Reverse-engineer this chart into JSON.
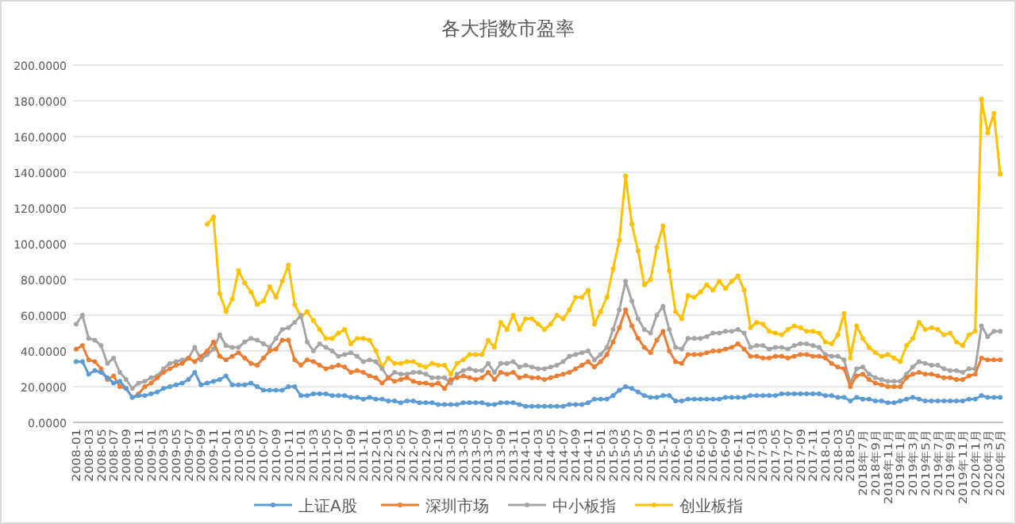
{
  "chart_data": {
    "type": "line",
    "title": "各大指数市盈率",
    "categories": [
      "2008-01",
      null,
      "2008-03",
      null,
      "2008-05",
      null,
      "2008-07",
      null,
      "2008-09",
      null,
      "2008-11",
      null,
      "2009-01",
      null,
      "2009-03",
      null,
      "2009-05",
      null,
      "2009-07",
      null,
      "2009-09",
      null,
      "2009-11",
      null,
      "2010-01",
      null,
      "2010-03",
      null,
      "2010-05",
      null,
      "2010-07",
      null,
      "2010-09",
      null,
      "2010-11",
      null,
      "2011-01",
      null,
      "2011-03",
      null,
      "2011-05",
      null,
      "2011-07",
      null,
      "2011-09",
      null,
      "2011-11",
      null,
      "2012-01",
      null,
      "2012-03",
      null,
      "2012-05",
      null,
      "2012-07",
      null,
      "2012-09",
      null,
      "2012-11",
      null,
      "2013-01",
      null,
      "2013-03",
      null,
      "2013-05",
      null,
      "2013-07",
      null,
      "2013-09",
      null,
      "2013-11",
      null,
      "2014-01",
      null,
      "2014-03",
      null,
      "2014-05",
      null,
      "2014-07",
      null,
      "2014-09",
      null,
      "2014-11",
      null,
      "2015-01",
      null,
      "2015-03",
      null,
      "2015-05",
      null,
      "2015-07",
      null,
      "2015-09",
      null,
      "2015-11",
      null,
      "2016-01",
      null,
      "2016-03",
      null,
      "2016-05",
      null,
      "2016-07",
      null,
      "2016-09",
      null,
      "2016-11",
      null,
      "2017-01",
      null,
      "2017-03",
      null,
      "2017-05",
      null,
      "2017-07",
      null,
      "2017-09",
      null,
      "2017-11",
      null,
      "2018-01",
      null,
      "2018-03",
      null,
      "2018-05",
      null,
      "2018年7月",
      null,
      "2018年9月",
      null,
      "2018年11月",
      null,
      "2019年1月",
      null,
      "2019年3月",
      null,
      "2019年5月",
      null,
      "2019年7月",
      null,
      "2019年9月",
      null,
      "2019年11月",
      null,
      "2020年1月",
      null,
      "2020年3月",
      null,
      "2020年5月"
    ],
    "series": [
      {
        "name": "上证A股",
        "color": "#5b9bd5",
        "values": [
          34,
          34,
          27,
          29,
          28,
          25,
          22,
          23,
          19,
          14,
          15,
          15,
          16,
          17,
          19,
          20,
          21,
          22,
          24,
          28,
          21,
          22,
          23,
          24,
          26,
          21,
          21,
          21,
          22,
          20,
          18,
          18,
          18,
          18,
          20,
          20,
          15,
          15,
          16,
          16,
          16,
          15,
          15,
          15,
          14,
          14,
          13,
          14,
          13,
          13,
          12,
          12,
          11,
          12,
          12,
          11,
          11,
          11,
          10,
          10,
          10,
          10,
          11,
          11,
          11,
          11,
          10,
          10,
          11,
          11,
          11,
          10,
          9,
          9,
          9,
          9,
          9,
          9,
          9,
          10,
          10,
          10,
          11,
          13,
          13,
          13,
          15,
          18,
          20,
          19,
          17,
          15,
          14,
          14,
          15,
          15,
          12,
          12,
          13,
          13,
          13,
          13,
          13,
          13,
          14,
          14,
          14,
          14,
          15,
          15,
          15,
          15,
          15,
          16,
          16,
          16,
          16,
          16,
          16,
          16,
          15,
          15,
          14,
          14,
          12,
          14,
          13,
          13,
          12,
          12,
          11,
          11,
          12,
          13,
          14,
          13,
          12,
          12,
          12,
          12,
          12,
          12,
          12,
          13,
          13,
          15,
          14,
          14,
          14
        ]
      },
      {
        "name": "深圳市场",
        "color": "#ed7d31",
        "values": [
          41,
          43,
          35,
          34,
          30,
          24,
          26,
          20,
          19,
          14,
          16,
          20,
          22,
          25,
          28,
          30,
          32,
          33,
          36,
          34,
          37,
          40,
          45,
          37,
          35,
          37,
          39,
          36,
          33,
          32,
          36,
          40,
          41,
          46,
          46,
          35,
          32,
          35,
          34,
          32,
          30,
          31,
          32,
          31,
          28,
          29,
          28,
          26,
          25,
          22,
          25,
          23,
          24,
          25,
          23,
          22,
          22,
          21,
          22,
          19,
          24,
          25,
          26,
          25,
          24,
          25,
          28,
          24,
          28,
          27,
          28,
          25,
          26,
          25,
          25,
          24,
          25,
          26,
          27,
          28,
          30,
          32,
          34,
          31,
          34,
          38,
          45,
          53,
          63,
          54,
          47,
          42,
          39,
          46,
          51,
          40,
          34,
          33,
          38,
          38,
          38,
          39,
          40,
          40,
          41,
          42,
          44,
          41,
          37,
          37,
          36,
          36,
          37,
          37,
          36,
          37,
          38,
          38,
          37,
          37,
          36,
          33,
          31,
          30,
          20,
          26,
          27,
          24,
          22,
          21,
          20,
          20,
          20,
          25,
          27,
          28,
          27,
          27,
          26,
          25,
          25,
          24,
          24,
          26,
          27,
          36,
          35,
          35,
          35
        ]
      },
      {
        "name": "中小板指",
        "color": "#a5a5a5",
        "values": [
          55,
          60,
          47,
          46,
          43,
          33,
          36,
          28,
          24,
          19,
          22,
          23,
          25,
          26,
          30,
          33,
          34,
          35,
          36,
          42,
          35,
          38,
          41,
          49,
          43,
          42,
          42,
          45,
          47,
          46,
          44,
          42,
          47,
          52,
          53,
          56,
          60,
          45,
          40,
          44,
          42,
          40,
          37,
          38,
          39,
          37,
          34,
          35,
          34,
          30,
          25,
          28,
          27,
          27,
          28,
          28,
          27,
          25,
          25,
          25,
          22,
          27,
          29,
          30,
          29,
          29,
          33,
          28,
          33,
          33,
          34,
          31,
          32,
          31,
          30,
          30,
          31,
          32,
          34,
          37,
          38,
          39,
          40,
          35,
          38,
          42,
          52,
          63,
          79,
          68,
          58,
          52,
          50,
          60,
          65,
          52,
          42,
          41,
          47,
          47,
          47,
          48,
          50,
          50,
          51,
          51,
          52,
          50,
          42,
          43,
          43,
          41,
          42,
          42,
          41,
          43,
          44,
          44,
          43,
          42,
          38,
          37,
          37,
          35,
          22,
          30,
          31,
          27,
          25,
          24,
          23,
          23,
          23,
          27,
          31,
          34,
          33,
          32,
          32,
          30,
          29,
          29,
          28,
          30,
          30,
          54,
          48,
          51,
          51
        ]
      },
      {
        "name": "创业板指",
        "color": "#ffc000",
        "values": [
          null,
          null,
          null,
          null,
          null,
          null,
          null,
          null,
          null,
          null,
          null,
          null,
          null,
          null,
          null,
          null,
          null,
          null,
          null,
          null,
          null,
          111,
          115,
          72,
          62,
          69,
          85,
          78,
          73,
          66,
          68,
          76,
          70,
          79,
          88,
          66,
          59,
          62,
          57,
          52,
          47,
          47,
          50,
          52,
          44,
          47,
          47,
          46,
          40,
          31,
          36,
          33,
          33,
          34,
          34,
          32,
          31,
          33,
          32,
          32,
          27,
          33,
          35,
          38,
          38,
          38,
          46,
          42,
          56,
          52,
          60,
          52,
          58,
          58,
          55,
          52,
          55,
          60,
          58,
          63,
          70,
          70,
          74,
          55,
          62,
          70,
          86,
          102,
          138,
          111,
          96,
          77,
          80,
          98,
          110,
          85,
          62,
          58,
          71,
          70,
          73,
          77,
          74,
          79,
          75,
          79,
          82,
          74,
          53,
          56,
          55,
          51,
          50,
          49,
          52,
          54,
          53,
          51,
          51,
          50,
          45,
          44,
          49,
          61,
          36,
          54,
          47,
          42,
          39,
          37,
          38,
          36,
          34,
          43,
          47,
          56,
          52,
          53,
          52,
          49,
          50,
          45,
          43,
          49,
          51,
          181,
          162,
          173,
          139
        ]
      }
    ],
    "ylim": [
      0,
      200
    ],
    "yticks": [
      {
        "value": 0,
        "label": "0.0000"
      },
      {
        "value": 20,
        "label": "20.0000"
      },
      {
        "value": 40,
        "label": "40.0000"
      },
      {
        "value": 60,
        "label": "60.0000"
      },
      {
        "value": 80,
        "label": "80.0000"
      },
      {
        "value": 100,
        "label": "100.0000"
      },
      {
        "value": 120,
        "label": "120.0000"
      },
      {
        "value": 140,
        "label": "140.0000"
      },
      {
        "value": 160,
        "label": "160.0000"
      },
      {
        "value": 180,
        "label": "180.0000"
      },
      {
        "value": 200,
        "label": "200.0000"
      }
    ],
    "grid": "y",
    "legend": "bottom",
    "marker": "circle"
  }
}
